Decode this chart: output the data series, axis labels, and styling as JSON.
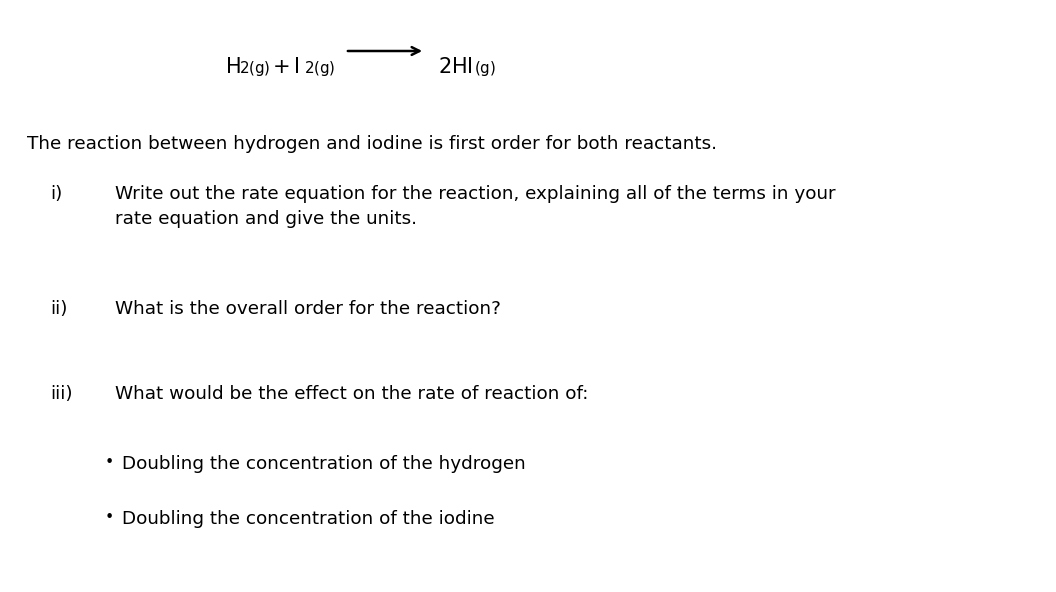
{
  "background_color": "#ffffff",
  "fig_width": 10.56,
  "fig_height": 5.92,
  "text_color": "#000000",
  "eq_fontsize": 15,
  "body_fontsize": 13.2,
  "label_fontsize": 13.2,
  "intro_text": "The reaction between hydrogen and iodine is first order for both reactants.",
  "items": [
    {
      "label": "i)",
      "text": "Write out the rate equation for the reaction, explaining all of the terms in your\nrate equation and give the units."
    },
    {
      "label": "ii)",
      "text": "What is the overall order for the reaction?"
    },
    {
      "label": "iii)",
      "text": "What would be the effect on the rate of reaction of:"
    }
  ],
  "bullets": [
    "Doubling the concentration of the hydrogen",
    "Doubling the concentration of the iodine"
  ]
}
